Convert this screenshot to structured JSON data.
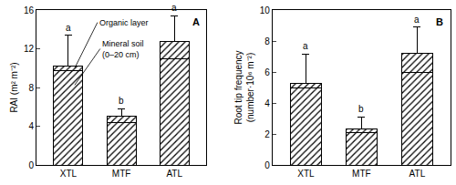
{
  "chart_data": [
    {
      "type": "bar",
      "stacked": true,
      "panel": "A",
      "y_label": "RAI (m² m⁻²)",
      "categories": [
        "XTL",
        "MTF",
        "ATL"
      ],
      "series": [
        {
          "name": "Mineral soil\n(0–20 cm)",
          "color": "#000000",
          "marker": "hatch",
          "values": [
            9.7,
            4.4,
            11.0
          ]
        },
        {
          "name": "Organic layer",
          "color": "#000000",
          "marker": "hatch",
          "values": [
            0.5,
            0.6,
            1.8
          ],
          "errors": [
            3.2,
            0.8,
            2.6
          ]
        }
      ],
      "letters": [
        "a",
        "b",
        "a"
      ],
      "ylim": [
        0,
        16
      ],
      "yticks": [
        0,
        4,
        8,
        12,
        16
      ],
      "grid": false
    },
    {
      "type": "bar",
      "stacked": true,
      "panel": "B",
      "y_label": "Root tip frequency\n(number·10⁶ m⁻²)",
      "categories": [
        "XTL",
        "MTF",
        "ATL"
      ],
      "series": [
        {
          "color": "#000000",
          "marker": "hatch",
          "values": [
            5.0,
            2.1,
            6.0
          ]
        },
        {
          "color": "#000000",
          "marker": "hatch",
          "values": [
            0.25,
            0.25,
            1.2
          ],
          "errors": [
            1.9,
            0.75,
            1.7
          ]
        }
      ],
      "letters": [
        "a",
        "b",
        "a"
      ],
      "ylim": [
        0,
        10
      ],
      "yticks": [
        0,
        2,
        4,
        6,
        8,
        10
      ],
      "grid": false
    }
  ]
}
